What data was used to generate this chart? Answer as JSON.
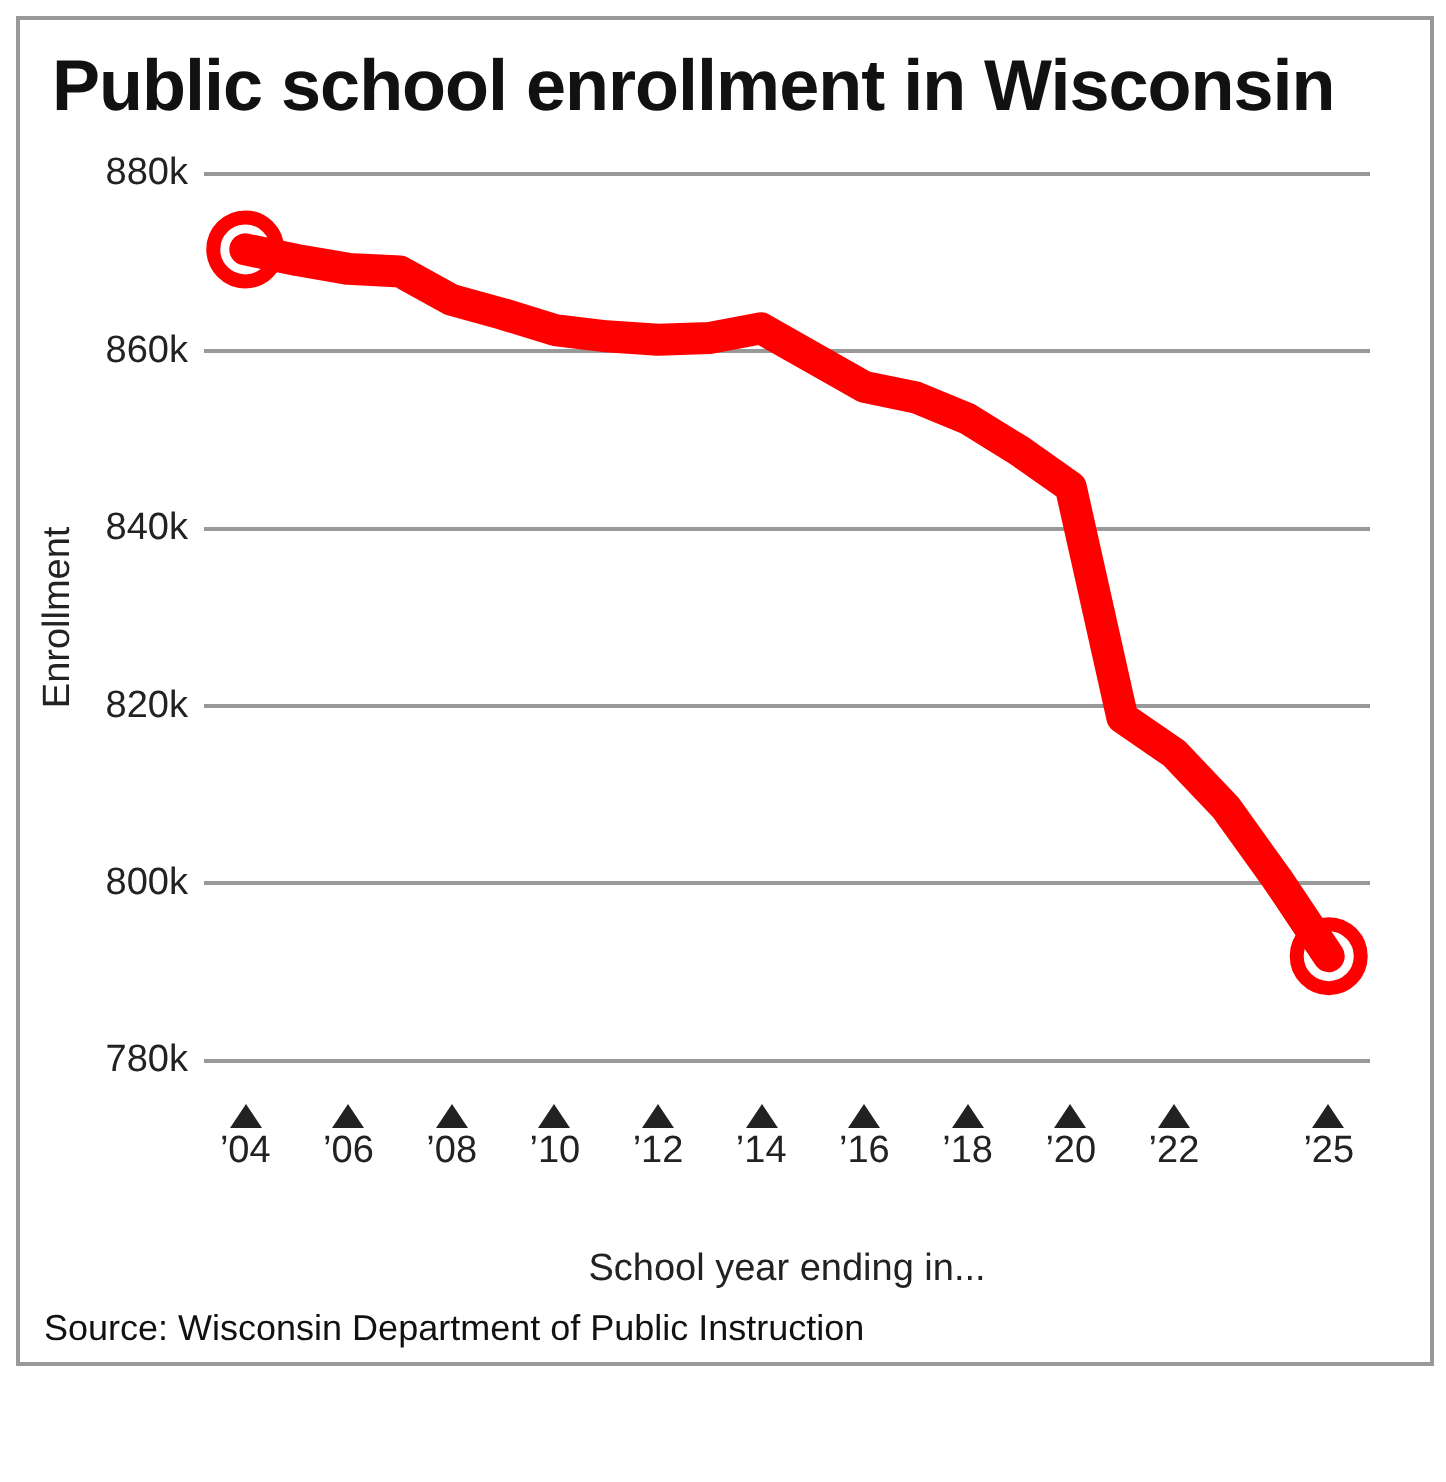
{
  "chart_data": {
    "type": "line",
    "title": "Public school enrollment in Wisconsin",
    "xlabel": "School year ending in...",
    "ylabel": "Enrollment",
    "annotations": [
      "Source: Wisconsin Department of Public Instruction"
    ],
    "x": [
      2004,
      2005,
      2006,
      2007,
      2008,
      2009,
      2010,
      2011,
      2012,
      2013,
      2014,
      2015,
      2016,
      2017,
      2018,
      2019,
      2020,
      2021,
      2022,
      2023,
      2024,
      2025
    ],
    "series": [
      {
        "color": "#ff0000",
        "marker": "none",
        "values": [
          871.5,
          870.3,
          869.3,
          869,
          865.8,
          864.2,
          862.4,
          861.7,
          861.3,
          861.5,
          862.6,
          859.3,
          856,
          854.8,
          852.4,
          848.8,
          844.7,
          818.7,
          814.7,
          808.6,
          800.5,
          791.8
        ]
      },
      {
        "type": "scatter",
        "color": "#ff0000",
        "marker": "circle",
        "x": [
          2004,
          2025
        ],
        "values": [
          871.5,
          791.8
        ]
      }
    ],
    "xlim": [
      2003.2,
      2025.8
    ],
    "xticks": [
      {
        "value": 2004,
        "label": "’04"
      },
      {
        "value": 2006,
        "label": "’06"
      },
      {
        "value": 2008,
        "label": "’08"
      },
      {
        "value": 2010,
        "label": "’10"
      },
      {
        "value": 2012,
        "label": "’12"
      },
      {
        "value": 2014,
        "label": "’14"
      },
      {
        "value": 2016,
        "label": "’16"
      },
      {
        "value": 2018,
        "label": "’18"
      },
      {
        "value": 2020,
        "label": "’20"
      },
      {
        "value": 2022,
        "label": "’22"
      },
      {
        "value": 2025,
        "label": "’25"
      }
    ],
    "ylim": [
      780,
      880
    ],
    "yticks": [
      {
        "value": 780,
        "label": "780k"
      },
      {
        "value": 800,
        "label": "800k"
      },
      {
        "value": 820,
        "label": "820k"
      },
      {
        "value": 840,
        "label": "840k"
      },
      {
        "value": 860,
        "label": "860k"
      },
      {
        "value": 880,
        "label": "880k"
      }
    ],
    "grid": "y",
    "legend": false,
    "line_style": "solid"
  }
}
